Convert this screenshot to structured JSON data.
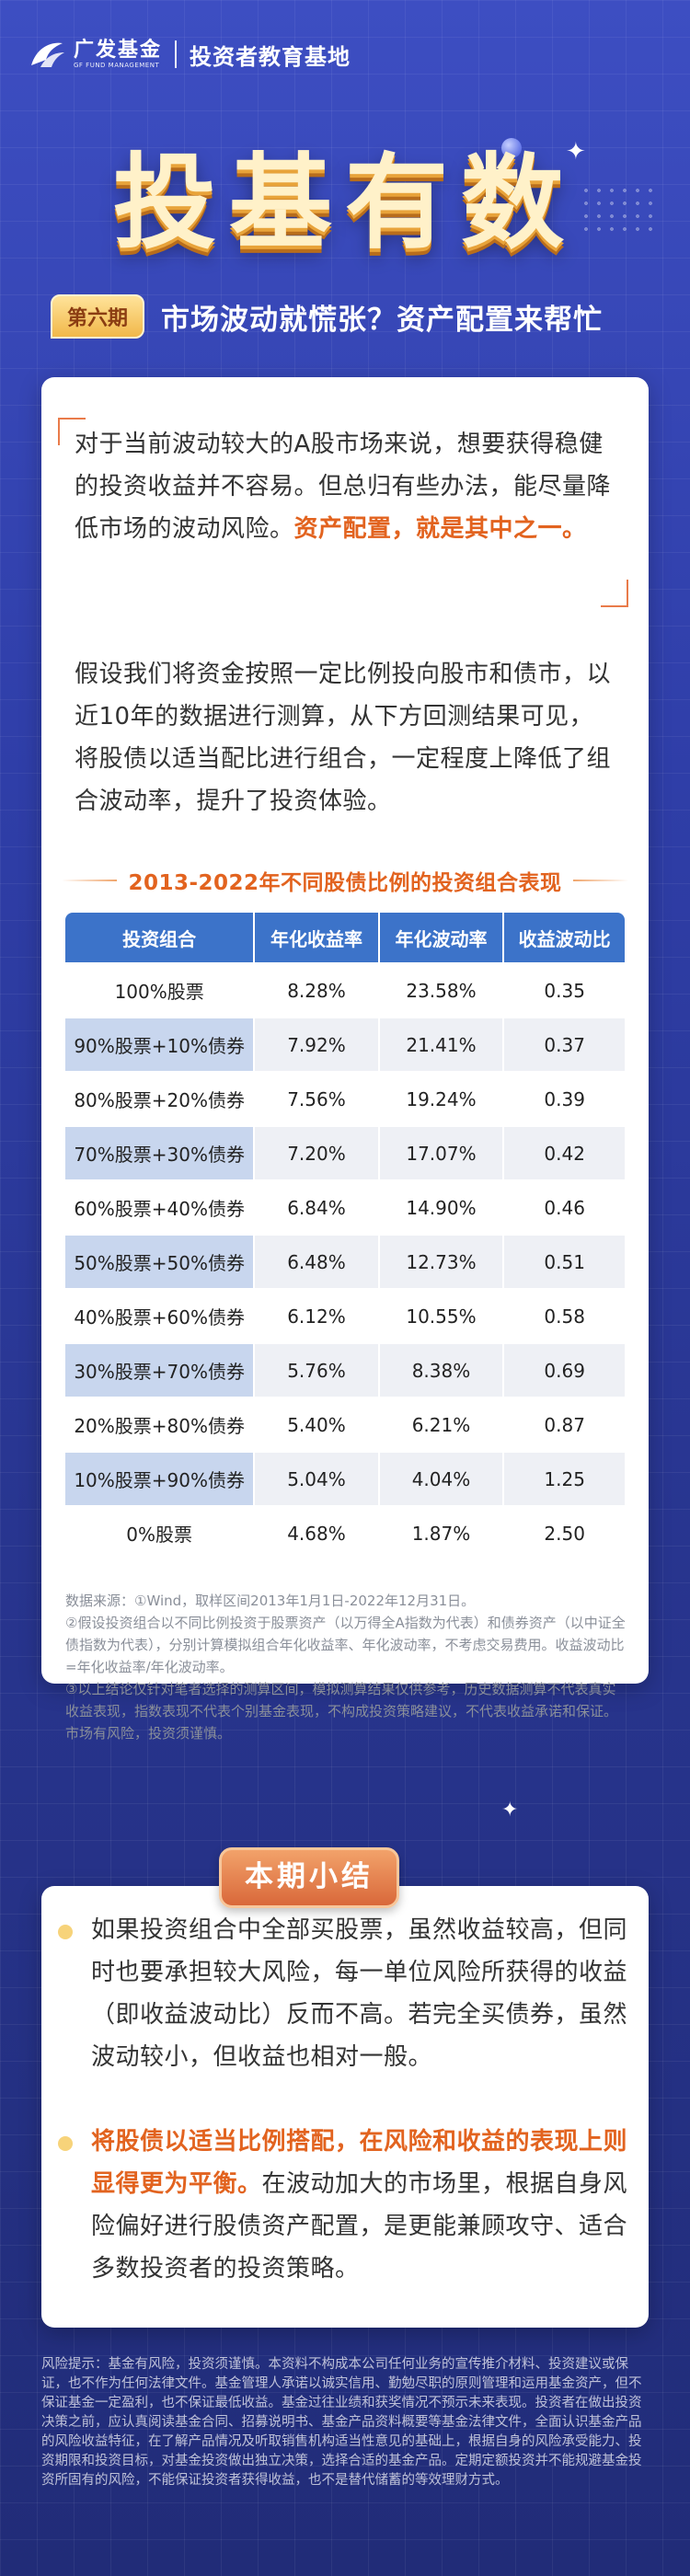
{
  "header": {
    "brand_cn": "广发基金",
    "brand_en": "GF FUND MANAGEMENT",
    "subtitle": "投资者教育基地",
    "main_title": "投基有数",
    "episode_badge": "第六期",
    "episode_title": "市场波动就慌张？资产配置来帮忙"
  },
  "intro": {
    "para1_a": "对于当前波动较大的A股市场来说，想要获得稳健的投资收益并不容易。但总归有些办法，能尽量降低市场的波动风险。",
    "para1_hl": "资产配置，就是其中之一。",
    "para2": "假设我们将资金按照一定比例投向股市和债市，以近10年的数据进行测算，从下方回测结果可见，将股债以适当配比进行组合，一定程度上降低了组合波动率，提升了投资体验。"
  },
  "table": {
    "title": "2013-2022年不同股债比例的投资组合表现",
    "headers": [
      "投资组合",
      "年化收益率",
      "年化波动率",
      "收益波动比"
    ],
    "rows": [
      [
        "100%股票",
        "8.28%",
        "23.58%",
        "0.35"
      ],
      [
        "90%股票+10%债券",
        "7.92%",
        "21.41%",
        "0.37"
      ],
      [
        "80%股票+20%债券",
        "7.56%",
        "19.24%",
        "0.39"
      ],
      [
        "70%股票+30%债券",
        "7.20%",
        "17.07%",
        "0.42"
      ],
      [
        "60%股票+40%债券",
        "6.84%",
        "14.90%",
        "0.46"
      ],
      [
        "50%股票+50%债券",
        "6.48%",
        "12.73%",
        "0.51"
      ],
      [
        "40%股票+60%债券",
        "6.12%",
        "10.55%",
        "0.58"
      ],
      [
        "30%股票+70%债券",
        "5.76%",
        "8.38%",
        "0.69"
      ],
      [
        "20%股票+80%债券",
        "5.40%",
        "6.21%",
        "0.87"
      ],
      [
        "10%股票+90%债券",
        "5.04%",
        "4.04%",
        "1.25"
      ],
      [
        "0%股票",
        "4.68%",
        "1.87%",
        "2.50"
      ]
    ]
  },
  "notes": {
    "n1": "数据来源：①Wind，取样区间2013年1月1日-2022年12月31日。",
    "n2": "②假设投资组合以不同比例投资于股票资产（以万得全A指数为代表）和债券资产（以中证全债指数为代表），分别计算模拟组合年化收益率、年化波动率，不考虑交易费用。收益波动比=年化收益率/年化波动率。",
    "n3": "③以上结论仅针对笔者选择的测算区间，模拟测算结果仅供参考，历史数据测算不代表真实收益表现，指数表现不代表个别基金表现，不构成投资策略建议，不代表收益承诺和保证。市场有风险，投资须谨慎。"
  },
  "summary": {
    "tab": "本期小结",
    "p1": "如果投资组合中全部买股票，虽然收益较高，但同时也要承担较大风险，每一单位风险所获得的收益（即收益波动比）反而不高。若完全买债券，虽然波动较小，但收益也相对一般。",
    "p2_hl": "将股债以适当比例搭配，在风险和收益的表现上则显得更为平衡。",
    "p2_rest": "在波动加大的市场里，根据自身风险偏好进行股债资产配置，是更能兼顾攻守、适合多数投资者的投资策略。"
  },
  "risk_notice": "风险提示：基金有风险，投资须谨慎。本资料不构成本公司任何业务的宣传推介材料、投资建议或保证，也不作为任何法律文件。基金管理人承诺以诚实信用、勤勉尽职的原则管理和运用基金资产，但不保证基金一定盈利，也不保证最低收益。基金过往业绩和获奖情况不预示未来表现。投资者在做出投资决策之前，应认真阅读基金合同、招募说明书、基金产品资料概要等基金法律文件，全面认识基金产品的风险收益特征，在了解产品情况及听取销售机构适当性意见的基础上，根据自身的风险承受能力、投资期限和投资目标，对基金投资做出独立决策，选择合适的基金产品。定期定额投资并不能规避基金投资所固有的风险，不能保证投资者获得收益，也不是替代储蓄的等效理财方式。"
}
